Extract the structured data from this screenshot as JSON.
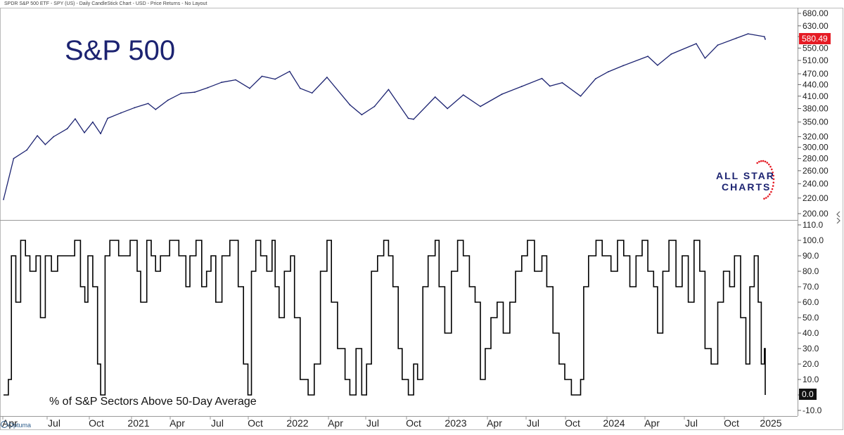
{
  "header": {
    "chart_info": "SPDR S&P 500 ETF - SPY (US) - Daily CandleStick Chart - USD - Price Returns - No Layout"
  },
  "branding": {
    "line1": "ALL STAR",
    "line2": "CHARTS",
    "platform": "Optuma"
  },
  "colors": {
    "price_line": "#1c2371",
    "breadth_line": "#000000",
    "last_price_bg": "#e51b24",
    "last_value_bg": "#111111",
    "brand_stars": "#e51b24"
  },
  "chart_data": [
    {
      "type": "line",
      "title": "S&P 500",
      "scale": "log",
      "ylim": [
        200,
        680
      ],
      "y_ticks": [
        "680.00",
        "630.00",
        "590.00",
        "550.00",
        "510.00",
        "470.00",
        "440.00",
        "410.00",
        "380.00",
        "350.00",
        "320.00",
        "300.00",
        "280.00",
        "260.00",
        "240.00",
        "220.00",
        "200.00"
      ],
      "x_ticks": [
        "Apr",
        "Jul",
        "Oct",
        "2021",
        "Apr",
        "Jul",
        "Oct",
        "2022",
        "Apr",
        "Jul",
        "Oct",
        "2023",
        "Apr",
        "Jul",
        "Oct",
        "2024",
        "Apr",
        "Jul",
        "Oct",
        "2025"
      ],
      "last_value": "580.49",
      "x": [
        "2020-03-23",
        "2020-04-15",
        "2020-05-15",
        "2020-06-08",
        "2020-06-26",
        "2020-07-15",
        "2020-08-15",
        "2020-09-02",
        "2020-09-23",
        "2020-10-12",
        "2020-10-30",
        "2020-11-15",
        "2020-12-15",
        "2021-01-15",
        "2021-02-15",
        "2021-03-04",
        "2021-04-01",
        "2021-05-01",
        "2021-06-01",
        "2021-07-01",
        "2021-08-01",
        "2021-09-02",
        "2021-10-04",
        "2021-11-01",
        "2021-12-01",
        "2022-01-03",
        "2022-01-27",
        "2022-02-23",
        "2022-03-29",
        "2022-05-20",
        "2022-06-16",
        "2022-07-15",
        "2022-08-16",
        "2022-09-30",
        "2022-10-12",
        "2022-11-30",
        "2022-12-28",
        "2023-02-02",
        "2023-03-13",
        "2023-05-01",
        "2023-06-15",
        "2023-07-31",
        "2023-08-18",
        "2023-09-15",
        "2023-10-27",
        "2023-11-30",
        "2023-12-29",
        "2024-02-01",
        "2024-03-28",
        "2024-04-19",
        "2024-05-20",
        "2024-07-16",
        "2024-08-05",
        "2024-09-03",
        "2024-10-15",
        "2024-11-11",
        "2024-12-18",
        "2024-12-20"
      ],
      "y": [
        218,
        280,
        295,
        322,
        305,
        320,
        336,
        357,
        328,
        350,
        326,
        358,
        370,
        382,
        392,
        378,
        400,
        417,
        420,
        432,
        446,
        453,
        430,
        463,
        455,
        477,
        430,
        418,
        460,
        389,
        366,
        385,
        427,
        358,
        356,
        408,
        380,
        413,
        385,
        415,
        435,
        457,
        436,
        445,
        410,
        456,
        476,
        494,
        523,
        495,
        530,
        565,
        517,
        560,
        584,
        600,
        590,
        580.49
      ]
    },
    {
      "type": "line",
      "title": "% of S&P Sectors Above 50-Day Average",
      "ylim": [
        -10,
        110
      ],
      "y_ticks": [
        "110.0",
        "100.0",
        "90.0",
        "80.0",
        "70.0",
        "60.0",
        "50.0",
        "40.0",
        "30.0",
        "20.0",
        "10.0",
        "0.0",
        "-10.0"
      ],
      "last_value": "0.0",
      "x": [
        "2020-03-23",
        "2020-04-03",
        "2020-04-10",
        "2020-04-20",
        "2020-05-01",
        "2020-05-12",
        "2020-05-22",
        "2020-06-05",
        "2020-06-15",
        "2020-06-26",
        "2020-07-10",
        "2020-07-24",
        "2020-08-14",
        "2020-09-01",
        "2020-09-14",
        "2020-09-24",
        "2020-10-01",
        "2020-10-12",
        "2020-10-23",
        "2020-10-30",
        "2020-11-09",
        "2020-11-20",
        "2020-12-10",
        "2021-01-05",
        "2021-01-21",
        "2021-01-29",
        "2021-02-12",
        "2021-02-22",
        "2021-03-04",
        "2021-03-15",
        "2021-04-05",
        "2021-04-26",
        "2021-05-12",
        "2021-05-21",
        "2021-06-04",
        "2021-06-17",
        "2021-06-28",
        "2021-07-08",
        "2021-07-19",
        "2021-08-02",
        "2021-08-20",
        "2021-09-08",
        "2021-09-20",
        "2021-09-30",
        "2021-10-08",
        "2021-10-18",
        "2021-10-29",
        "2021-11-12",
        "2021-11-24",
        "2021-12-01",
        "2021-12-10",
        "2021-12-22",
        "2022-01-05",
        "2022-01-14",
        "2022-01-27",
        "2022-02-14",
        "2022-02-28",
        "2022-03-14",
        "2022-03-29",
        "2022-04-08",
        "2022-04-22",
        "2022-05-09",
        "2022-05-20",
        "2022-06-03",
        "2022-06-16",
        "2022-06-27",
        "2022-07-08",
        "2022-07-22",
        "2022-08-05",
        "2022-08-16",
        "2022-08-26",
        "2022-09-07",
        "2022-09-16",
        "2022-09-30",
        "2022-10-12",
        "2022-10-21",
        "2022-11-02",
        "2022-11-14",
        "2022-11-30",
        "2022-12-09",
        "2022-12-22",
        "2023-01-06",
        "2023-01-20",
        "2023-02-02",
        "2023-02-16",
        "2023-03-01",
        "2023-03-13",
        "2023-03-24",
        "2023-04-06",
        "2023-04-20",
        "2023-05-04",
        "2023-05-19",
        "2023-06-01",
        "2023-06-15",
        "2023-06-28",
        "2023-07-14",
        "2023-07-31",
        "2023-08-11",
        "2023-08-25",
        "2023-09-08",
        "2023-09-21",
        "2023-10-06",
        "2023-10-27",
        "2023-11-03",
        "2023-11-14",
        "2023-12-01",
        "2023-12-15",
        "2024-01-04",
        "2024-01-19",
        "2024-02-02",
        "2024-02-16",
        "2024-03-01",
        "2024-03-15",
        "2024-03-28",
        "2024-04-10",
        "2024-04-19",
        "2024-05-01",
        "2024-05-15",
        "2024-05-31",
        "2024-06-14",
        "2024-06-28",
        "2024-07-11",
        "2024-07-24",
        "2024-08-05",
        "2024-08-19",
        "2024-09-03",
        "2024-09-16",
        "2024-09-30",
        "2024-10-11",
        "2024-10-25",
        "2024-11-06",
        "2024-11-15",
        "2024-11-25",
        "2024-12-04",
        "2024-12-11",
        "2024-12-18",
        "2024-12-20"
      ],
      "y": [
        0,
        10,
        90,
        60,
        100,
        90,
        80,
        90,
        50,
        90,
        80,
        90,
        90,
        100,
        70,
        60,
        90,
        70,
        20,
        0,
        90,
        100,
        90,
        100,
        80,
        60,
        100,
        90,
        80,
        90,
        100,
        90,
        70,
        90,
        100,
        70,
        80,
        90,
        60,
        90,
        100,
        70,
        20,
        0,
        80,
        100,
        90,
        80,
        100,
        70,
        50,
        80,
        90,
        50,
        10,
        0,
        20,
        80,
        100,
        60,
        30,
        10,
        0,
        30,
        0,
        20,
        80,
        90,
        100,
        90,
        70,
        30,
        10,
        0,
        20,
        10,
        70,
        90,
        100,
        70,
        40,
        80,
        100,
        90,
        70,
        60,
        10,
        30,
        50,
        60,
        40,
        60,
        80,
        90,
        100,
        80,
        90,
        70,
        40,
        20,
        10,
        0,
        10,
        70,
        90,
        100,
        90,
        80,
        100,
        90,
        70,
        90,
        100,
        80,
        70,
        40,
        80,
        100,
        70,
        90,
        60,
        100,
        80,
        30,
        20,
        60,
        80,
        70,
        90,
        50,
        20,
        70,
        90,
        60,
        20,
        30,
        0
      ]
    }
  ]
}
